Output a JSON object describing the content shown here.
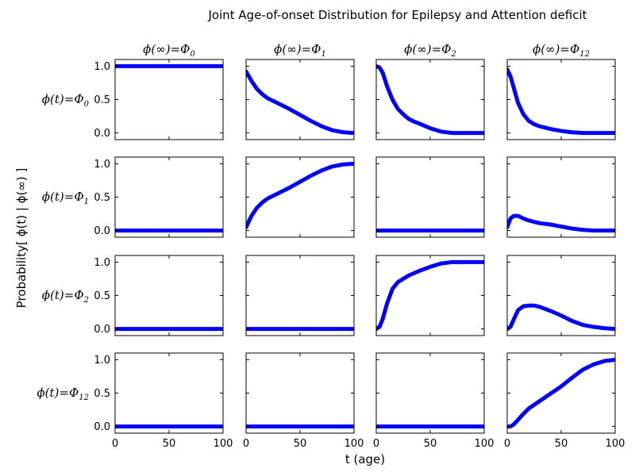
{
  "figure": {
    "title": "Joint Age-of-onset Distribution for Epilepsy and Attention deficit",
    "xlabel": "t (age)",
    "ylabel": "Probability[ ϕ(t) | ϕ(∞) ]",
    "column_titles": [
      "ϕ(∞)=Φ0",
      "ϕ(∞)=Φ1",
      "ϕ(∞)=Φ2",
      "ϕ(∞)=Φ12"
    ],
    "row_labels": [
      "ϕ(t)=Φ0",
      "ϕ(t)=Φ1",
      "ϕ(t)=Φ2",
      "ϕ(t)=Φ12"
    ],
    "xticks": [
      0,
      50,
      100
    ],
    "yticks": [
      0.0,
      0.5,
      1.0
    ],
    "ytick_labels": [
      "0.0",
      "0.5",
      "1.0"
    ],
    "line_color": "#0000ff"
  },
  "chart_data": {
    "type": "line",
    "layout": "4x4 small multiples",
    "xlim": [
      0,
      100
    ],
    "ylim": [
      -0.1,
      1.1
    ],
    "grid": false,
    "legend": "none",
    "panels": [
      [
        {
          "x": [
            0,
            100
          ],
          "y": [
            1,
            1
          ]
        },
        {
          "x": [
            0,
            5,
            10,
            15,
            20,
            30,
            40,
            50,
            60,
            70,
            80,
            90,
            100
          ],
          "y": [
            0.92,
            0.78,
            0.66,
            0.58,
            0.52,
            0.44,
            0.36,
            0.27,
            0.18,
            0.1,
            0.04,
            0.01,
            0
          ]
        },
        {
          "x": [
            0,
            3,
            6,
            10,
            15,
            20,
            25,
            30,
            35,
            40,
            50,
            60,
            70,
            80,
            90,
            100
          ],
          "y": [
            1,
            0.98,
            0.9,
            0.7,
            0.5,
            0.36,
            0.28,
            0.21,
            0.17,
            0.14,
            0.07,
            0.02,
            0,
            0,
            0,
            0
          ]
        },
        {
          "x": [
            0,
            3,
            6,
            10,
            15,
            20,
            25,
            30,
            40,
            50,
            60,
            70,
            80,
            90,
            100
          ],
          "y": [
            0.95,
            0.85,
            0.68,
            0.45,
            0.28,
            0.18,
            0.13,
            0.1,
            0.06,
            0.03,
            0.01,
            0,
            0,
            0,
            0
          ]
        }
      ],
      [
        {
          "x": [
            0,
            100
          ],
          "y": [
            0,
            0
          ]
        },
        {
          "x": [
            0,
            5,
            10,
            15,
            20,
            30,
            40,
            50,
            60,
            70,
            80,
            90,
            100
          ],
          "y": [
            0.05,
            0.22,
            0.34,
            0.42,
            0.48,
            0.56,
            0.64,
            0.73,
            0.82,
            0.9,
            0.96,
            0.99,
            1
          ]
        },
        {
          "x": [
            0,
            100
          ],
          "y": [
            0,
            0
          ]
        },
        {
          "x": [
            0,
            3,
            6,
            10,
            15,
            20,
            30,
            40,
            50,
            60,
            70,
            80,
            90,
            100
          ],
          "y": [
            0.05,
            0.18,
            0.22,
            0.22,
            0.18,
            0.15,
            0.11,
            0.09,
            0.06,
            0.03,
            0.01,
            0,
            0,
            0
          ]
        }
      ],
      [
        {
          "x": [
            0,
            100
          ],
          "y": [
            0,
            0
          ]
        },
        {
          "x": [
            0,
            100
          ],
          "y": [
            0,
            0
          ]
        },
        {
          "x": [
            0,
            3,
            6,
            10,
            15,
            20,
            30,
            40,
            50,
            60,
            70,
            80,
            90,
            100
          ],
          "y": [
            0,
            0.03,
            0.15,
            0.38,
            0.6,
            0.7,
            0.8,
            0.87,
            0.93,
            0.98,
            1,
            1,
            1,
            1
          ]
        },
        {
          "x": [
            0,
            3,
            6,
            10,
            15,
            20,
            25,
            30,
            40,
            50,
            60,
            70,
            80,
            90,
            100
          ],
          "y": [
            0,
            0.03,
            0.14,
            0.28,
            0.34,
            0.35,
            0.35,
            0.33,
            0.27,
            0.2,
            0.12,
            0.06,
            0.03,
            0.01,
            0
          ]
        }
      ],
      [
        {
          "x": [
            0,
            100
          ],
          "y": [
            0,
            0
          ]
        },
        {
          "x": [
            0,
            100
          ],
          "y": [
            0,
            0
          ]
        },
        {
          "x": [
            0,
            100
          ],
          "y": [
            0,
            0
          ]
        },
        {
          "x": [
            0,
            3,
            6,
            10,
            15,
            20,
            30,
            40,
            50,
            60,
            70,
            80,
            90,
            100
          ],
          "y": [
            0,
            0,
            0.03,
            0.1,
            0.19,
            0.27,
            0.38,
            0.49,
            0.6,
            0.73,
            0.85,
            0.93,
            0.98,
            1
          ]
        }
      ]
    ]
  }
}
